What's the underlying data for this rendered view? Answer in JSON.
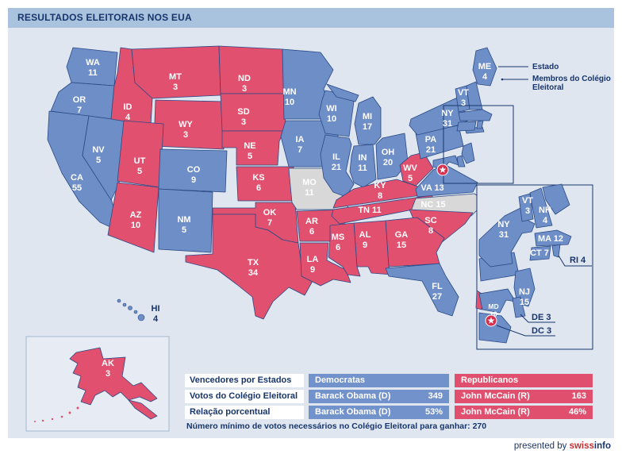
{
  "title": "RESULTADOS ELEITORAIS NOS EUA",
  "legend": {
    "estado": "Estado",
    "membros": "Membros do Colégio Eleitoral"
  },
  "colors": {
    "democrat": "#6e8ec8",
    "republican": "#e1506e",
    "undecided": "#d8d8d8",
    "navy": "#17356b",
    "sea": "#dfe6f0",
    "title_bar": "#a9c3de",
    "table_democrat": "#7292cb",
    "table_republican": "#e0506e",
    "marker_red": "#d6304f"
  },
  "map": {
    "states": [
      {
        "abbr": "WA",
        "votes": 11,
        "party": "democrat"
      },
      {
        "abbr": "OR",
        "votes": 7,
        "party": "democrat"
      },
      {
        "abbr": "CA",
        "votes": 55,
        "party": "democrat"
      },
      {
        "abbr": "NV",
        "votes": 5,
        "party": "democrat"
      },
      {
        "abbr": "ID",
        "votes": 4,
        "party": "republican"
      },
      {
        "abbr": "MT",
        "votes": 3,
        "party": "republican"
      },
      {
        "abbr": "WY",
        "votes": 3,
        "party": "republican"
      },
      {
        "abbr": "UT",
        "votes": 5,
        "party": "republican"
      },
      {
        "abbr": "CO",
        "votes": 9,
        "party": "democrat"
      },
      {
        "abbr": "AZ",
        "votes": 10,
        "party": "republican"
      },
      {
        "abbr": "NM",
        "votes": 5,
        "party": "democrat"
      },
      {
        "abbr": "ND",
        "votes": 3,
        "party": "republican"
      },
      {
        "abbr": "SD",
        "votes": 3,
        "party": "republican"
      },
      {
        "abbr": "NE",
        "votes": 5,
        "party": "republican"
      },
      {
        "abbr": "KS",
        "votes": 6,
        "party": "republican"
      },
      {
        "abbr": "OK",
        "votes": 7,
        "party": "republican"
      },
      {
        "abbr": "TX",
        "votes": 34,
        "party": "republican"
      },
      {
        "abbr": "MN",
        "votes": 10,
        "party": "democrat"
      },
      {
        "abbr": "IA",
        "votes": 7,
        "party": "democrat"
      },
      {
        "abbr": "MO",
        "votes": 11,
        "party": "undecided"
      },
      {
        "abbr": "AR",
        "votes": 6,
        "party": "republican"
      },
      {
        "abbr": "LA",
        "votes": 9,
        "party": "republican"
      },
      {
        "abbr": "WI",
        "votes": 10,
        "party": "democrat"
      },
      {
        "abbr": "IL",
        "votes": 21,
        "party": "democrat"
      },
      {
        "abbr": "MI",
        "votes": 17,
        "party": "democrat"
      },
      {
        "abbr": "IN",
        "votes": 11,
        "party": "democrat"
      },
      {
        "abbr": "OH",
        "votes": 20,
        "party": "democrat"
      },
      {
        "abbr": "KY",
        "votes": 8,
        "party": "republican"
      },
      {
        "abbr": "TN",
        "votes": 11,
        "party": "republican"
      },
      {
        "abbr": "WV",
        "votes": 5,
        "party": "republican"
      },
      {
        "abbr": "VA",
        "votes": 13,
        "party": "democrat"
      },
      {
        "abbr": "NC",
        "votes": 15,
        "party": "undecided"
      },
      {
        "abbr": "SC",
        "votes": 8,
        "party": "republican"
      },
      {
        "abbr": "GA",
        "votes": 15,
        "party": "republican"
      },
      {
        "abbr": "AL",
        "votes": 9,
        "party": "republican"
      },
      {
        "abbr": "MS",
        "votes": 6,
        "party": "republican"
      },
      {
        "abbr": "FL",
        "votes": 27,
        "party": "democrat"
      },
      {
        "abbr": "PA",
        "votes": 21,
        "party": "democrat"
      },
      {
        "abbr": "NY",
        "votes": 31,
        "party": "democrat"
      },
      {
        "abbr": "NJ",
        "votes": 15,
        "party": "democrat"
      },
      {
        "abbr": "VT",
        "votes": 3,
        "party": "democrat"
      },
      {
        "abbr": "NH",
        "votes": 4,
        "party": "democrat"
      },
      {
        "abbr": "ME",
        "votes": 4,
        "party": "democrat"
      },
      {
        "abbr": "MA",
        "votes": 12,
        "party": "democrat"
      },
      {
        "abbr": "CT",
        "votes": 7,
        "party": "democrat"
      },
      {
        "abbr": "RI",
        "votes": 4,
        "party": "democrat"
      },
      {
        "abbr": "MD",
        "votes": 10,
        "party": "democrat"
      },
      {
        "abbr": "DE",
        "votes": 3,
        "party": "democrat"
      },
      {
        "abbr": "HI",
        "votes": 4,
        "party": "democrat"
      }
    ]
  },
  "inset_northeast": {
    "states": [
      {
        "abbr": "NY",
        "votes": 31,
        "party": "democrat"
      },
      {
        "abbr": "VT",
        "votes": 3,
        "party": "democrat"
      },
      {
        "abbr": "NH",
        "votes": 4,
        "party": "democrat"
      },
      {
        "abbr": "MA",
        "votes": 12,
        "party": "democrat"
      },
      {
        "abbr": "CT",
        "votes": 7,
        "party": "democrat"
      },
      {
        "abbr": "RI",
        "votes": 4,
        "party": "democrat"
      },
      {
        "abbr": "NJ",
        "votes": 15,
        "party": "democrat"
      },
      {
        "abbr": "MD",
        "votes": 10,
        "party": "democrat"
      },
      {
        "abbr": "DE",
        "votes": 3,
        "party": "democrat"
      },
      {
        "abbr": "DC",
        "votes": 3,
        "party": "democrat"
      }
    ]
  },
  "inset_alaska": {
    "states": [
      {
        "abbr": "AK",
        "votes": 3,
        "party": "republican"
      }
    ]
  },
  "table": {
    "rows": [
      {
        "label": "Vencedores por Estados",
        "dem": "Democratas",
        "rep": "Republicanos"
      },
      {
        "label": "Votos do Colégio Eleitoral",
        "dem_name": "Barack Obama (D)",
        "dem_value": "349",
        "rep_name": "John McCain (R)",
        "rep_value": "163"
      },
      {
        "label": "Relação porcentual",
        "dem_name": "Barack Obama (D)",
        "dem_value": "53%",
        "rep_name": "John McCain (R)",
        "rep_value": "46%"
      }
    ]
  },
  "note": "Número mínimo de votos necessários no Colégio Eleitoral para ganhar: 270",
  "footer": {
    "presented_by": "presented by",
    "brand_part1": "swiss",
    "brand_part2": "info"
  }
}
